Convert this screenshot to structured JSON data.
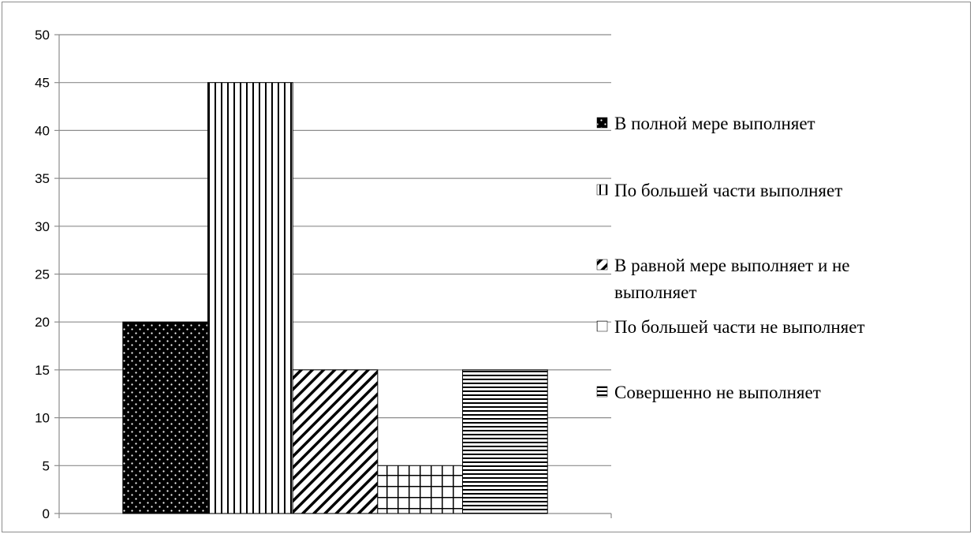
{
  "chart_data": {
    "type": "bar",
    "title": "",
    "xlabel": "",
    "ylabel": "",
    "ylim": [
      0,
      50
    ],
    "yticks": [
      0,
      5,
      10,
      15,
      20,
      25,
      30,
      35,
      40,
      45,
      50
    ],
    "grid": true,
    "legend_position": "right",
    "series": [
      {
        "name": "В полной мере выполняет",
        "value": 20,
        "pattern": "dots"
      },
      {
        "name": "По большей части выполняет",
        "value": 45,
        "pattern": "vertical-lines"
      },
      {
        "name": "В равной мере выполняет и не выполняет",
        "value": 15,
        "pattern": "diagonal-lines"
      },
      {
        "name": "По большей части не выполняет",
        "value": 5,
        "pattern": "grid"
      },
      {
        "name": "Совершенно не выполняет",
        "value": 15,
        "pattern": "horizontal-lines"
      }
    ]
  },
  "legend": {
    "items": [
      {
        "lines": [
          "В полной мере выполняет"
        ]
      },
      {
        "lines": [
          "По большей части выполняет"
        ]
      },
      {
        "lines": [
          "В равной мере выполняет и не",
          "выполняет"
        ]
      },
      {
        "lines": [
          "По большей части не выполняет"
        ]
      },
      {
        "lines": [
          "Совершенно не выполняет"
        ]
      }
    ]
  }
}
